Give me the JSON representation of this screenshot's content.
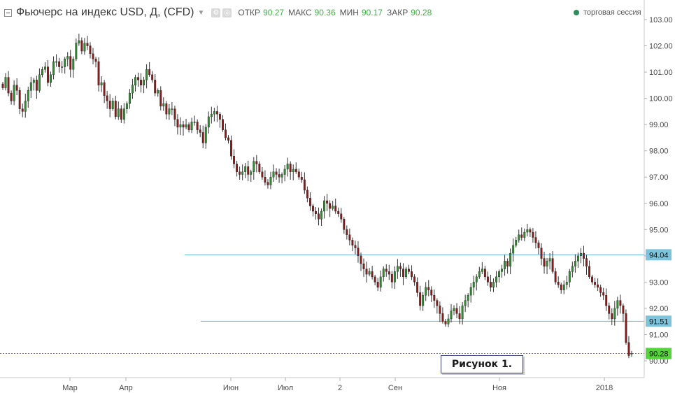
{
  "header": {
    "title": "Фьючерс на индекс USD, Д, (CFD)",
    "caret_icon": "chevron-down-icon",
    "icons": [
      "settings-icon",
      "target-icon"
    ],
    "ohlc": [
      {
        "label": "ОТКР",
        "value": "90.27"
      },
      {
        "label": "МАКС",
        "value": "90.36"
      },
      {
        "label": "МИН",
        "value": "90.17"
      },
      {
        "label": "ЗАКР",
        "value": "90.28"
      }
    ],
    "session_label": "торговая сессия"
  },
  "figure_label": "Рисунок 1.",
  "colors": {
    "up": "#2f8f2f",
    "down": "#8b1a1a",
    "hline": "#6ab4d8",
    "current_price_line": "#3cb043",
    "badge_blue": "#7cc4dc",
    "badge_green": "#55d33a"
  },
  "chart_data": {
    "type": "candlestick",
    "title": "Фьючерс на индекс USD, Д, (CFD)",
    "ylim": [
      89.6,
      103.3
    ],
    "y_ticks": [
      "90.00",
      "91.00",
      "92.00",
      "93.00",
      "94.00",
      "95.00",
      "96.00",
      "97.00",
      "98.00",
      "99.00",
      "100.00",
      "101.00",
      "102.00",
      "103.00"
    ],
    "x_ticks": [
      "Мар",
      "Апр",
      "Июн",
      "Июл",
      "2",
      "Сен",
      "Ноя",
      "2018"
    ],
    "grid": false,
    "horizontal_levels": [
      {
        "value": 94.04,
        "label": "94.04",
        "color": "blue"
      },
      {
        "value": 91.51,
        "label": "91.51",
        "color": "blue"
      }
    ],
    "current_price": {
      "value": 90.28,
      "label": "90.28"
    },
    "closes": [
      100.4,
      100.8,
      100.2,
      99.9,
      100.5,
      100.3,
      99.6,
      99.5,
      99.9,
      100.3,
      100.6,
      100.7,
      100.3,
      100.9,
      101.1,
      101.2,
      100.6,
      100.9,
      101.4,
      101.4,
      101.2,
      101.2,
      101.5,
      101.6,
      101.1,
      101.5,
      102.1,
      102.2,
      101.8,
      102.1,
      102.0,
      101.7,
      101.5,
      101.4,
      100.5,
      100.6,
      100.1,
      99.9,
      99.6,
      99.9,
      99.3,
      99.6,
      99.2,
      99.6,
      99.8,
      100.2,
      100.5,
      100.8,
      100.7,
      100.5,
      100.7,
      101.1,
      100.9,
      100.7,
      100.2,
      100.3,
      99.7,
      99.8,
      99.4,
      99.6,
      99.6,
      99.2,
      98.9,
      99.0,
      98.9,
      99.0,
      98.8,
      99.1,
      99.1,
      98.8,
      98.7,
      98.3,
      98.9,
      99.3,
      99.4,
      99.5,
      99.4,
      99.2,
      98.8,
      98.5,
      98.4,
      97.8,
      97.5,
      97.2,
      97.1,
      97.2,
      97.4,
      97.1,
      97.2,
      97.6,
      97.5,
      97.2,
      97.0,
      96.8,
      96.7,
      97.0,
      97.2,
      97.1,
      97.0,
      97.1,
      97.3,
      97.5,
      97.2,
      97.3,
      97.2,
      97.0,
      96.9,
      96.5,
      96.2,
      95.9,
      95.7,
      95.6,
      95.4,
      95.7,
      96.1,
      96.0,
      95.8,
      95.9,
      95.7,
      95.6,
      95.4,
      95.0,
      94.8,
      94.6,
      94.4,
      94.3,
      94.0,
      93.7,
      93.5,
      93.3,
      93.4,
      93.2,
      93.0,
      92.8,
      93.2,
      93.5,
      93.4,
      93.3,
      93.0,
      93.4,
      93.6,
      93.5,
      93.2,
      93.5,
      93.4,
      93.2,
      93.0,
      92.6,
      92.1,
      92.5,
      92.8,
      92.7,
      92.5,
      92.3,
      92.1,
      91.8,
      91.5,
      91.4,
      91.6,
      91.9,
      92.0,
      91.8,
      91.6,
      92.1,
      92.3,
      92.5,
      92.8,
      93.0,
      93.2,
      93.4,
      93.5,
      93.2,
      93.0,
      92.8,
      93.0,
      93.2,
      93.4,
      93.5,
      93.8,
      93.6,
      94.1,
      94.4,
      94.6,
      94.8,
      94.7,
      94.9,
      95.0,
      94.9,
      94.7,
      94.5,
      94.3,
      93.9,
      93.6,
      93.8,
      93.9,
      93.4,
      93.0,
      92.9,
      92.7,
      92.9,
      93.0,
      93.4,
      93.6,
      93.8,
      94.0,
      94.1,
      93.9,
      93.6,
      93.2,
      93.0,
      92.9,
      92.8,
      92.6,
      92.5,
      92.1,
      91.8,
      91.6,
      92.0,
      92.3,
      92.1,
      91.8,
      90.7,
      90.2,
      90.28
    ]
  }
}
